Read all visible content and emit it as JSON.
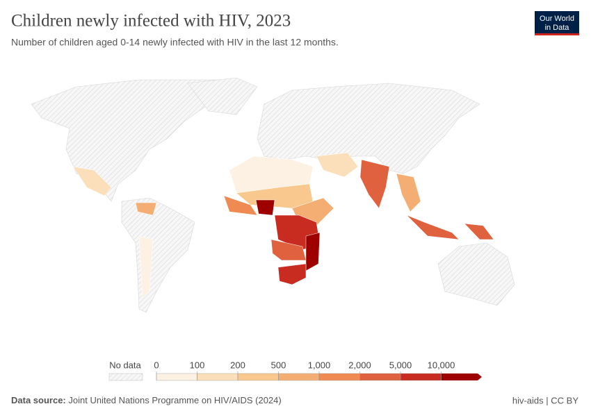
{
  "header": {
    "title": "Children newly infected with HIV, 2023",
    "subtitle": "Number of children aged 0-14 newly infected with HIV in the last 12 months.",
    "logo": [
      "Our World",
      "in Data"
    ]
  },
  "legend": {
    "no_data_label": "No data",
    "ticks": [
      0,
      100,
      200,
      500,
      {
        "value": 1000,
        "label": "1,000"
      },
      {
        "value": 2000,
        "label": "2,000"
      },
      {
        "value": 5000,
        "label": "5,000"
      },
      {
        "value": 10000,
        "label": "10,000"
      }
    ],
    "colors": [
      "#fdf1e4",
      "#fbdfba",
      "#f8c88e",
      "#f4ad72",
      "#ee8a52",
      "#e0613d",
      "#c82b1f",
      "#9e0000"
    ]
  },
  "footer": {
    "source_label": "Data source:",
    "source": "Joint United Nations Programme on HIV/AIDS (2024)",
    "credit": "hiv-aids | CC BY"
  }
}
